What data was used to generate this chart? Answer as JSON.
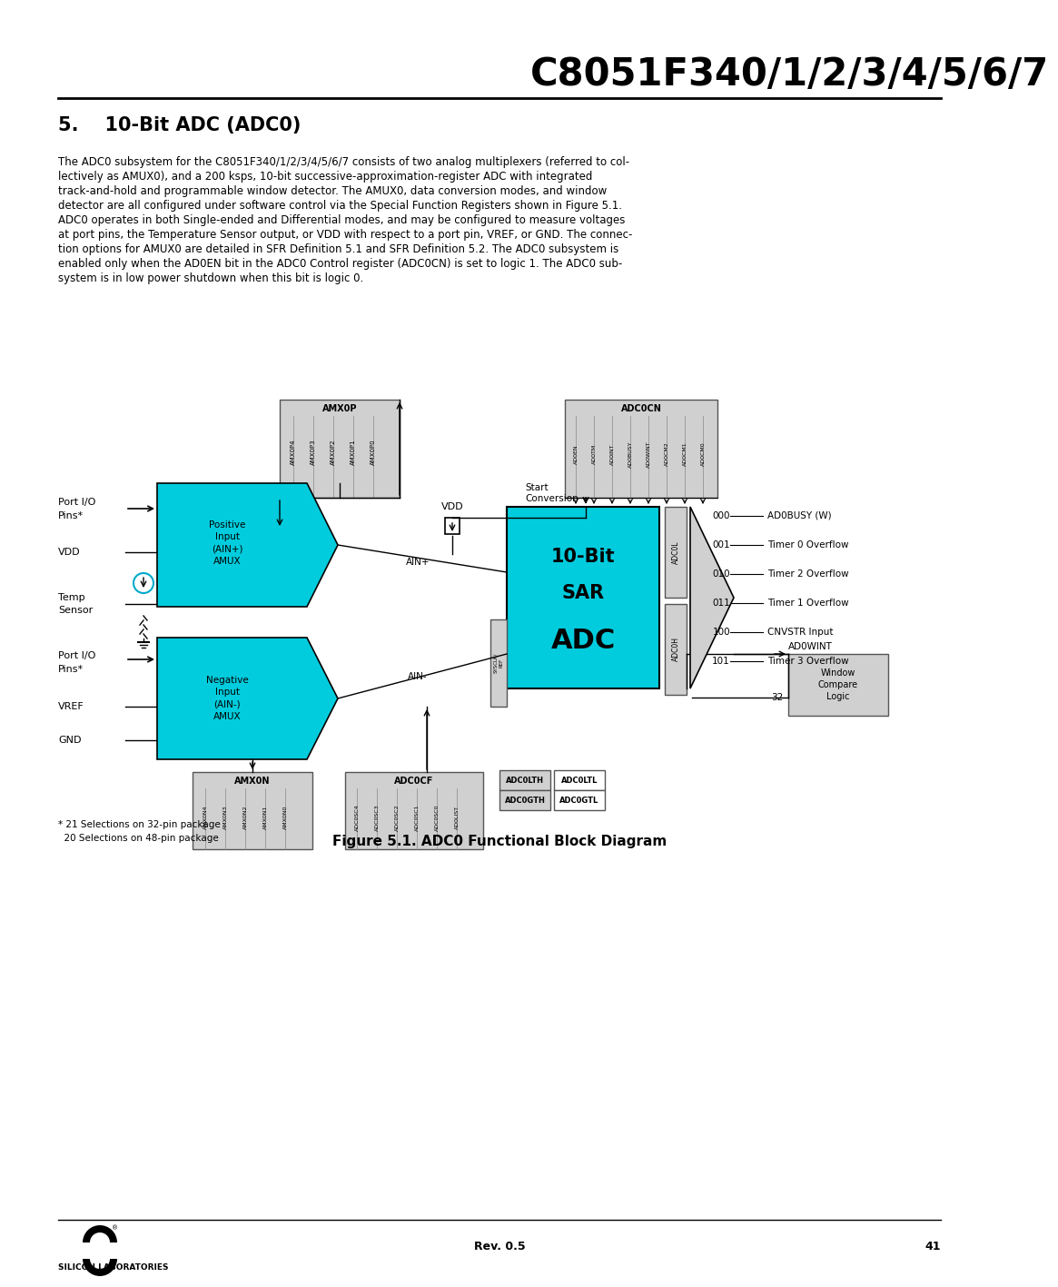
{
  "title": "C8051F340/1/2/3/4/5/6/7",
  "section_title": "5.    10-Bit ADC (ADC0)",
  "body_lines": [
    "The ADC0 subsystem for the C8051F340/1/2/3/4/5/6/7 consists of two analog multiplexers (referred to col-",
    "lectively as AMUX0), and a 200 ksps, 10-bit successive-approximation-register ADC with integrated",
    "track-and-hold and programmable window detector. The AMUX0, data conversion modes, and window",
    "detector are all configured under software control via the Special Function Registers shown in Figure 5.1.",
    "ADC0 operates in both Single-ended and Differential modes, and may be configured to measure voltages",
    "at port pins, the Temperature Sensor output, or VDD with respect to a port pin, VREF, or GND. The connec-",
    "tion options for AMUX0 are detailed in SFR Definition 5.1 and SFR Definition 5.2. The ADC0 subsystem is",
    "enabled only when the AD0EN bit in the ADC0 Control register (ADC0CN) is set to logic 1. The ADC0 sub-",
    "system is in low power shutdown when this bit is logic 0."
  ],
  "figure_caption": "Figure 5.1. ADC0 Functional Block Diagram",
  "footer_rev": "Rev. 0.5",
  "footer_page": "41",
  "bg_color": "#ffffff",
  "cyan_color": "#00ccdd",
  "gray_color": "#d0d0d0",
  "amx0p_labels": [
    "AMX0P4",
    "AMX0P3",
    "AMX0P2",
    "AMX0P1",
    "AMX0P0"
  ],
  "adccn_labels": [
    "AD0EN",
    "AD0TM",
    "AD0INT",
    "AD0BUSY",
    "AD0WINT",
    "AD0CM2",
    "AD0CM1",
    "AD0CM0"
  ],
  "amx0n_labels": [
    "AMX0N4",
    "AMX0N3",
    "AMX0N2",
    "AMX0N1",
    "AMX0N0"
  ],
  "adccf_labels": [
    "ADC0SC4",
    "ADC0SC3",
    "ADC0SC2",
    "ADC0SC1",
    "ADC0SC0",
    "AD0LIST"
  ],
  "mux_codes": [
    "000",
    "001",
    "010",
    "011",
    "100",
    "101"
  ],
  "mux_labels": [
    "AD0BUSY (W)",
    "Timer 0 Overflow",
    "Timer 2 Overflow",
    "Timer 1 Overflow",
    "CNVSTR Input",
    "Timer 3 Overflow"
  ]
}
